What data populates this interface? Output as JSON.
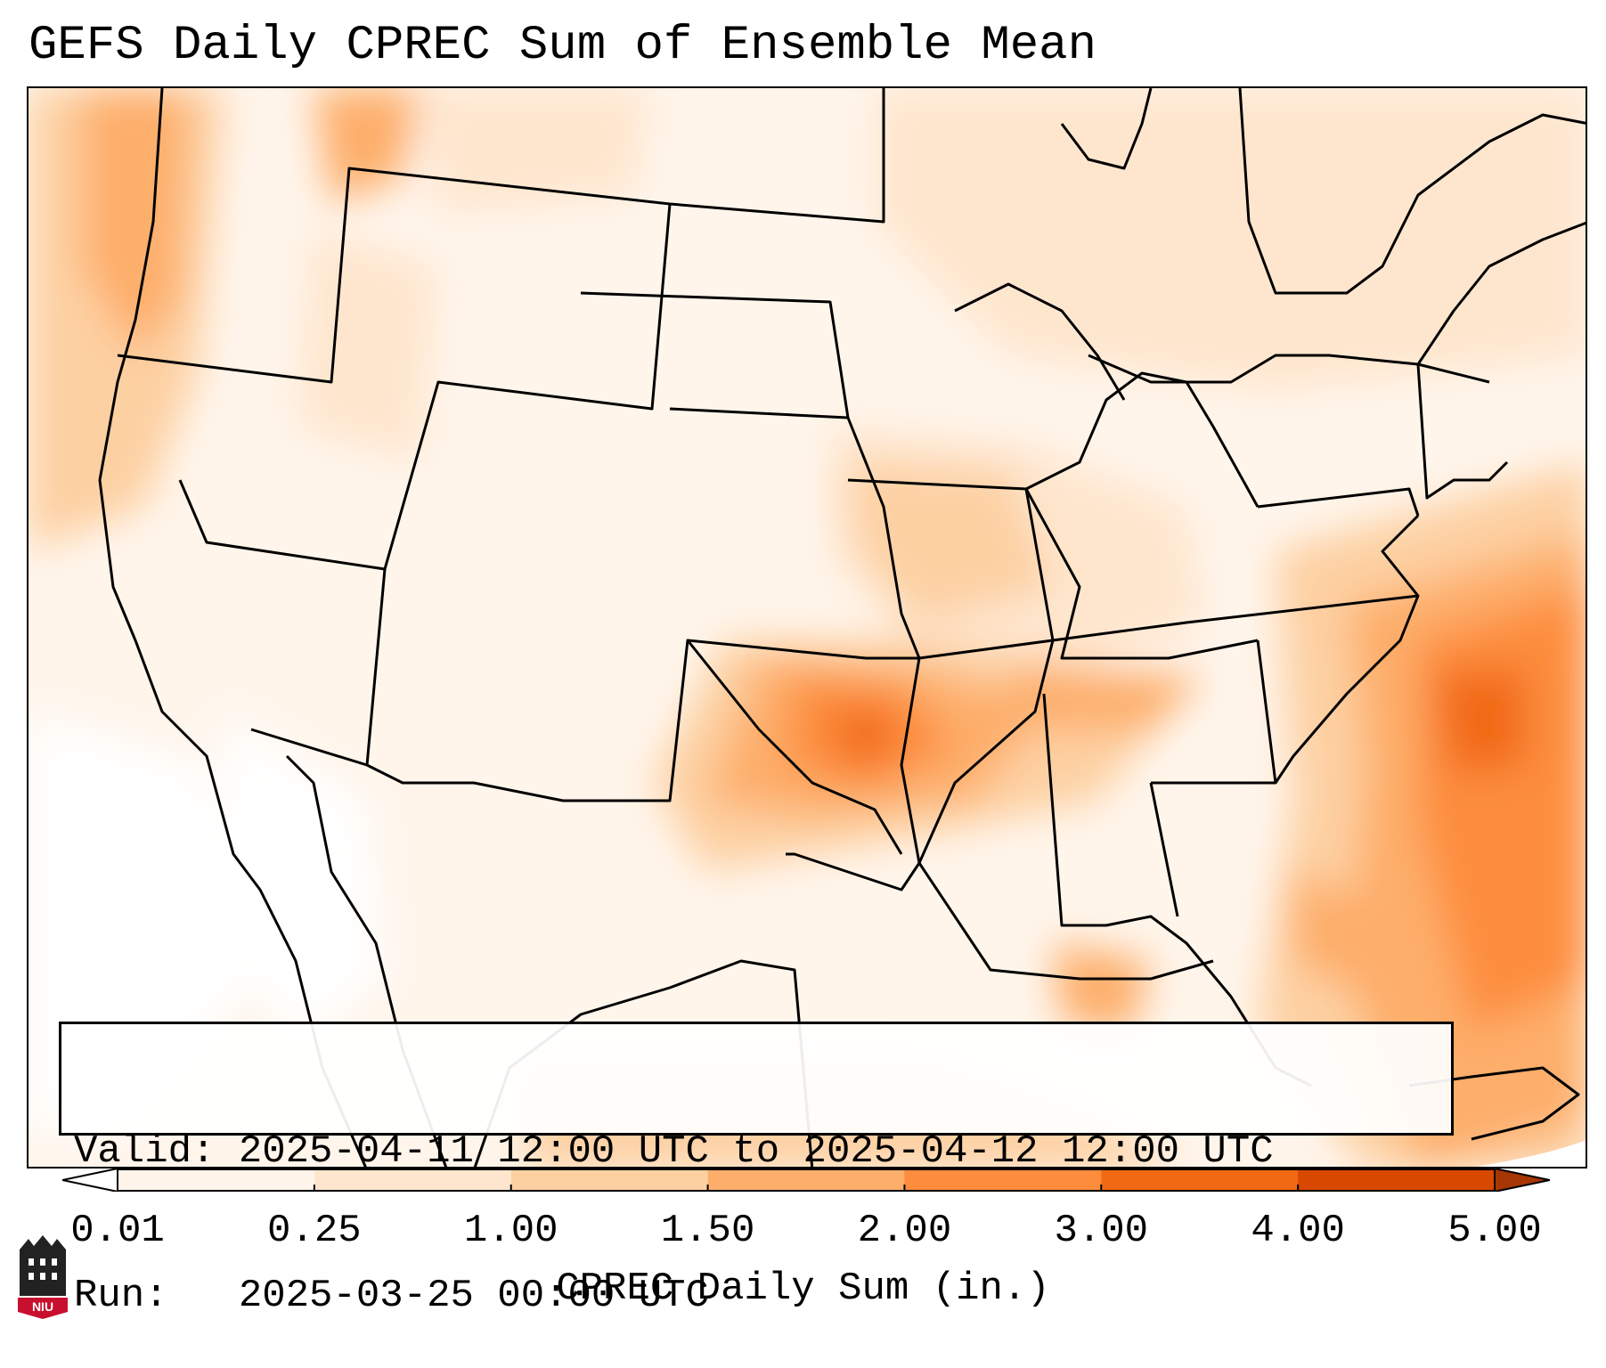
{
  "title": "GEFS Daily CPREC Sum of Ensemble Mean",
  "info": {
    "valid_label": "Valid:",
    "valid_value": "2025-04-11 12:00 UTC to 2025-04-12 12:00 UTC",
    "run_label": "Run:",
    "run_value": "2025-03-25 00:00 UTC"
  },
  "colorbar": {
    "label": "CPREC Daily Sum (in.)",
    "ticks": [
      "0.01",
      "0.25",
      "1.00",
      "1.50",
      "2.00",
      "3.00",
      "4.00",
      "5.00"
    ],
    "colors": [
      "#fff5eb",
      "#fee6ce",
      "#fdd0a2",
      "#fdae6b",
      "#fd8d3c",
      "#f16913",
      "#d94801",
      "#a63603"
    ],
    "under_color": "#ffffff",
    "over_color": "#7f2704"
  },
  "logo": {
    "text": "NIU",
    "icon": "niu-castle-logo-icon",
    "color": "#c8102e"
  }
}
